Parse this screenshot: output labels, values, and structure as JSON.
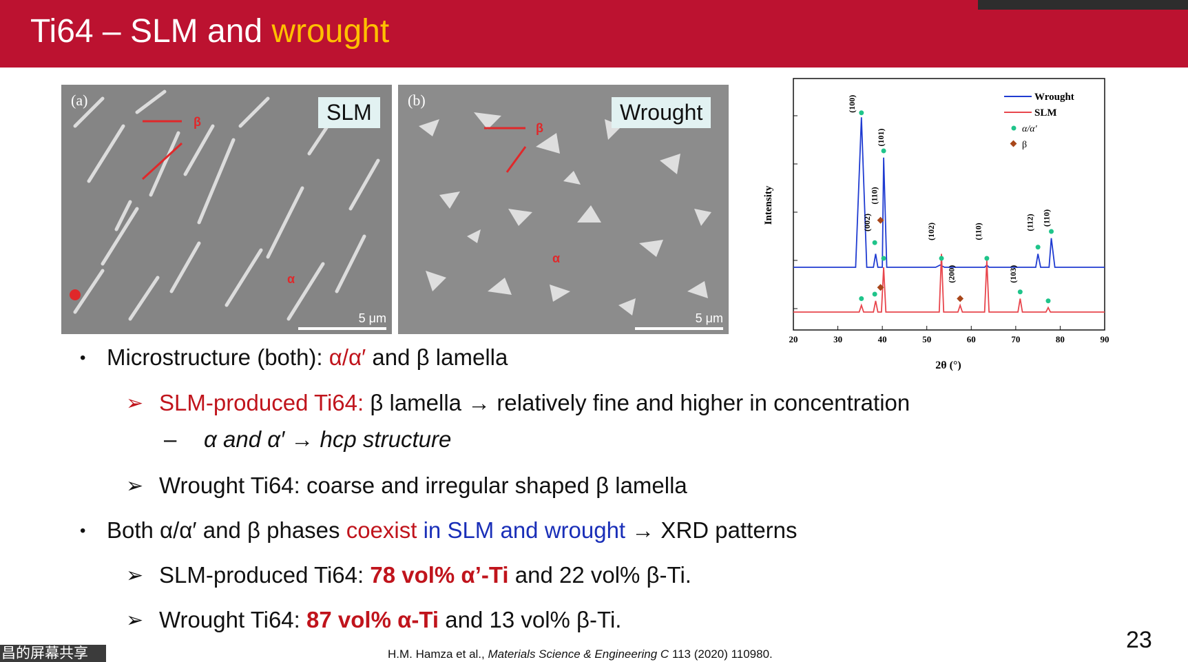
{
  "header": {
    "title_part1": "Ti64 – SLM and ",
    "title_highlight": "wrought"
  },
  "images": {
    "left": {
      "letter": "(a)",
      "tag": "SLM",
      "beta_label": "β",
      "alpha_label": "α",
      "scale": "5 μm"
    },
    "right": {
      "letter": "(b)",
      "tag": "Wrought",
      "beta_label": "β",
      "alpha_label": "α",
      "scale": "5 μm"
    }
  },
  "xrd_chart": {
    "ylabel": "Intensity",
    "xlabel": "2θ (°)",
    "xticks": [
      "20",
      "30",
      "40",
      "50",
      "60",
      "70",
      "80",
      "90"
    ],
    "legend": {
      "wrought": "Wrought",
      "slm": "SLM",
      "alpha": "α/α'",
      "beta": "β"
    },
    "peak_labels": [
      "(100)",
      "(002)",
      "(110)",
      "(101)",
      "(102)",
      "(110)",
      "(112)",
      "(110)",
      "(200)",
      "(103)"
    ]
  },
  "chart_data": {
    "type": "line",
    "xlabel": "2θ (°)",
    "ylabel": "Intensity",
    "xlim": [
      20,
      90
    ],
    "series": [
      {
        "name": "Wrought",
        "x": [
          20,
          34,
          35.3,
          36.5,
          38,
          38.5,
          39,
          40,
          40.3,
          41,
          52,
          53,
          54,
          63,
          63.5,
          64,
          74.5,
          75,
          75.6,
          77.5,
          78,
          78.8,
          90
        ],
        "y": [
          0.2,
          0.2,
          0.87,
          0.2,
          0.2,
          0.26,
          0.2,
          0.2,
          0.69,
          0.2,
          0.2,
          0.21,
          0.2,
          0.2,
          0.21,
          0.2,
          0.2,
          0.26,
          0.2,
          0.2,
          0.33,
          0.2,
          0.2
        ]
      },
      {
        "name": "SLM",
        "x": [
          20,
          34.8,
          35.3,
          35.8,
          38,
          38.5,
          39,
          39.8,
          40.3,
          40.8,
          52.8,
          53.3,
          53.8,
          57,
          57.5,
          58,
          63,
          63.5,
          64,
          70.5,
          71,
          71.5,
          76.8,
          77.3,
          77.8,
          90
        ],
        "y": [
          0.0,
          0.0,
          0.03,
          0.0,
          0.0,
          0.05,
          0.0,
          0.0,
          0.2,
          0.0,
          0.0,
          0.26,
          0.0,
          0.0,
          0.03,
          0.0,
          0.0,
          0.23,
          0.0,
          0.0,
          0.06,
          0.0,
          0.0,
          0.02,
          0.0,
          0.0
        ]
      }
    ]
  },
  "bullets": {
    "b1": {
      "prefix": "Microstructure (both): ",
      "red": "α/α′",
      "suffix": " and β lamella"
    },
    "s1": {
      "red": "SLM-produced Ti64: ",
      "text": "β lamella → relatively fine and higher in concentration"
    },
    "s1a": {
      "text": "α and α′ → hcp structure"
    },
    "s2": {
      "text": "Wrought Ti64: coarse and irregular shaped β lamella"
    },
    "b2": {
      "prefix": "Both α/α′ and β phases ",
      "red": "coexist",
      "blue": " in SLM and wrought",
      "suffix": " → XRD patterns"
    },
    "s3": {
      "prefix": "SLM-produced Ti64: ",
      "red_bold": "78 vol% α’-Ti",
      "suffix": " and 22 vol% β-Ti."
    },
    "s4": {
      "prefix": "Wrought Ti64: ",
      "red_bold": "87 vol% α-Ti",
      "suffix": " and 13 vol% β-Ti."
    }
  },
  "footer": {
    "page": "23",
    "citation_prefix": "H.M. Hamza et al., ",
    "citation_journal": "Materials Science & Engineering C",
    "citation_suffix": " 113 (2020) 110980.",
    "share_label": "昌的屏幕共享"
  },
  "colors": {
    "titlebar": "#bc1230",
    "highlight": "#ffc000",
    "red_text": "#c0141c",
    "blue_text": "#1a2fb8",
    "wrought_line": "#1f3bd1",
    "slm_line": "#e8454c",
    "alpha_marker": "#1fc48a",
    "beta_marker": "#a8461a"
  }
}
